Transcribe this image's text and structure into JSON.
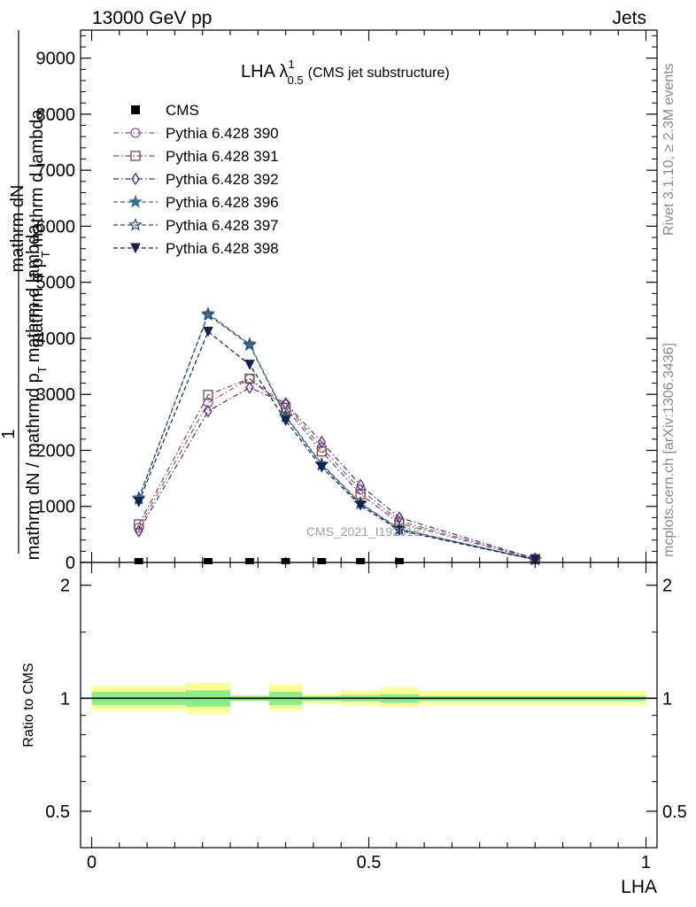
{
  "header": {
    "left": "13000 GeV pp",
    "right": "Jets"
  },
  "side_labels": {
    "rivet": "Rivet 3.1.10, ≥ 2.3M events",
    "mcplots": "mcplots.cern.ch [arXiv:1306.3436]"
  },
  "watermark": "CMS_2021_I1920187",
  "chart_data": [
    {
      "type": "line",
      "title": "LHA λ¹₀.₅ (CMS jet substructure)",
      "title_main": "LHA λ",
      "title_sup": "1",
      "title_sub": "0.5",
      "title_rest": "(CMS jet substructure)",
      "xlabel": "LHA",
      "ylabel_lines": [
        "mathrm dN",
        "mathrm d p_T mathrm d lambda",
        "1",
        "mathrm dN / mathrmd p_T mathrm d lambda"
      ],
      "ylabel_parts": {
        "numer_1": "mathrm dN",
        "numer_2": "mathrm d p",
        "numer_2_sub": "T",
        "numer_2_rest": "mathrm d lambda",
        "one": "1",
        "denom": "mathrm dN / mathrmd p",
        "denom_sub": "T",
        "denom_rest": "mathrm d lambda"
      },
      "xlim": [
        -0.02,
        1.02
      ],
      "ylim": [
        0,
        9500
      ],
      "y_ticks": [
        0,
        1000,
        2000,
        3000,
        4000,
        5000,
        6000,
        7000,
        8000,
        9000
      ],
      "y_tick_labels": [
        "0",
        "1000",
        "2000",
        "3000",
        "4000",
        "5000",
        "6000",
        "7000",
        "8000",
        "9000"
      ],
      "cms": {
        "name": "CMS",
        "x": [
          0.085,
          0.21,
          0.285,
          0.35,
          0.415,
          0.485,
          0.555
        ],
        "y": [
          0,
          0,
          0,
          0,
          0,
          0,
          0
        ]
      },
      "series": [
        {
          "name": "Pythia 6.428 390",
          "color": "#8a5a8a",
          "marker": "circle",
          "dash": "dashdot",
          "x": [
            0.085,
            0.21,
            0.285,
            0.35,
            0.415,
            0.485,
            0.555,
            0.8
          ],
          "y": [
            620,
            2850,
            3280,
            2820,
            2050,
            1300,
            740,
            65
          ]
        },
        {
          "name": "Pythia 6.428 391",
          "color": "#7a4848",
          "marker": "square",
          "dash": "dashdot",
          "x": [
            0.085,
            0.21,
            0.285,
            0.35,
            0.415,
            0.485,
            0.555,
            0.8
          ],
          "y": [
            680,
            2990,
            3280,
            2760,
            1980,
            1220,
            700,
            60
          ]
        },
        {
          "name": "Pythia 6.428 392",
          "color": "#55288a",
          "marker": "diamond",
          "dash": "dashdot",
          "x": [
            0.085,
            0.21,
            0.285,
            0.35,
            0.415,
            0.485,
            0.555,
            0.8
          ],
          "y": [
            560,
            2700,
            3120,
            2840,
            2150,
            1380,
            800,
            70
          ]
        },
        {
          "name": "Pythia 6.428 396",
          "color": "#3a6e8c",
          "marker": "star-filled",
          "dash": "dashed",
          "x": [
            0.085,
            0.21,
            0.285,
            0.35,
            0.415,
            0.485,
            0.555,
            0.8
          ],
          "y": [
            1130,
            4440,
            3900,
            2620,
            1760,
            1060,
            600,
            50
          ]
        },
        {
          "name": "Pythia 6.428 397",
          "color": "#2e4e6e",
          "marker": "star-open",
          "dash": "dashed",
          "x": [
            0.085,
            0.21,
            0.285,
            0.35,
            0.415,
            0.485,
            0.555,
            0.8
          ],
          "y": [
            1150,
            4420,
            3880,
            2600,
            1740,
            1050,
            590,
            50
          ]
        },
        {
          "name": "Pythia 6.428 398",
          "color": "#142050",
          "marker": "triangle-down",
          "dash": "dashed",
          "x": [
            0.085,
            0.21,
            0.285,
            0.35,
            0.415,
            0.485,
            0.555,
            0.8
          ],
          "y": [
            1080,
            4120,
            3530,
            2530,
            1700,
            1020,
            570,
            48
          ]
        }
      ],
      "legend_placement": "top-left"
    },
    {
      "type": "area",
      "ylabel": "Ratio to CMS",
      "xlabel": "LHA",
      "xlim": [
        -0.02,
        1.02
      ],
      "ylim": [
        0.4,
        2.3
      ],
      "y_scale": "log",
      "y_ticks": [
        0.5,
        1,
        2
      ],
      "y_tick_labels": [
        "0.5",
        "1",
        "2"
      ],
      "x_ticks": [
        0,
        0.5,
        1
      ],
      "x_tick_labels": [
        "0",
        "0.5",
        "1"
      ],
      "bins": [
        {
          "lo": 0.0,
          "hi": 0.17,
          "stat_lo": 0.96,
          "stat_hi": 1.04,
          "tot_lo": 0.93,
          "tot_hi": 1.08
        },
        {
          "lo": 0.17,
          "hi": 0.25,
          "stat_lo": 0.95,
          "stat_hi": 1.05,
          "tot_lo": 0.91,
          "tot_hi": 1.1
        },
        {
          "lo": 0.25,
          "hi": 0.32,
          "stat_lo": 0.985,
          "stat_hi": 1.015,
          "tot_lo": 0.98,
          "tot_hi": 1.02
        },
        {
          "lo": 0.32,
          "hi": 0.38,
          "stat_lo": 0.96,
          "stat_hi": 1.04,
          "tot_lo": 0.93,
          "tot_hi": 1.09
        },
        {
          "lo": 0.38,
          "hi": 0.45,
          "stat_lo": 0.985,
          "stat_hi": 1.015,
          "tot_lo": 0.97,
          "tot_hi": 1.03
        },
        {
          "lo": 0.45,
          "hi": 0.52,
          "stat_lo": 0.98,
          "stat_hi": 1.02,
          "tot_lo": 0.96,
          "tot_hi": 1.05
        },
        {
          "lo": 0.52,
          "hi": 0.59,
          "stat_lo": 0.975,
          "stat_hi": 1.025,
          "tot_lo": 0.95,
          "tot_hi": 1.07
        },
        {
          "lo": 0.59,
          "hi": 1.0,
          "stat_lo": 0.985,
          "stat_hi": 1.015,
          "tot_lo": 0.96,
          "tot_hi": 1.05
        }
      ],
      "reference": 1
    }
  ]
}
